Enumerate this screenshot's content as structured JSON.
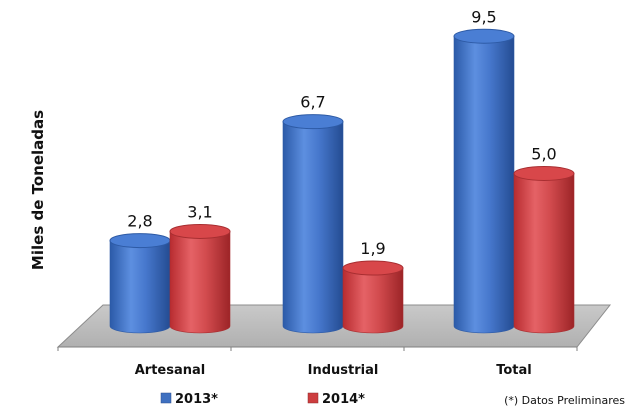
{
  "chart_data": {
    "type": "bar",
    "style": "3d-cylinder",
    "categories": [
      "Artesanal",
      "Industrial",
      "Total"
    ],
    "series": [
      {
        "name": "2013*",
        "values": [
          2.8,
          6.7,
          9.5
        ],
        "labels": [
          "2,8",
          "6,7",
          "9,5"
        ],
        "color": "#3f70c0"
      },
      {
        "name": "2014*",
        "values": [
          3.1,
          1.9,
          5.0
        ],
        "labels": [
          "3,1",
          "1,9",
          "5,0"
        ],
        "color": "#cd3d3f"
      }
    ],
    "ylabel": "Miles de Toneladas",
    "xlabel": "",
    "grid": false,
    "legend": "bottom"
  },
  "note": "(*) Datos Preliminares",
  "colors": {
    "floor": "#bfbfbf",
    "floor_edge": "#8c8c8c"
  }
}
